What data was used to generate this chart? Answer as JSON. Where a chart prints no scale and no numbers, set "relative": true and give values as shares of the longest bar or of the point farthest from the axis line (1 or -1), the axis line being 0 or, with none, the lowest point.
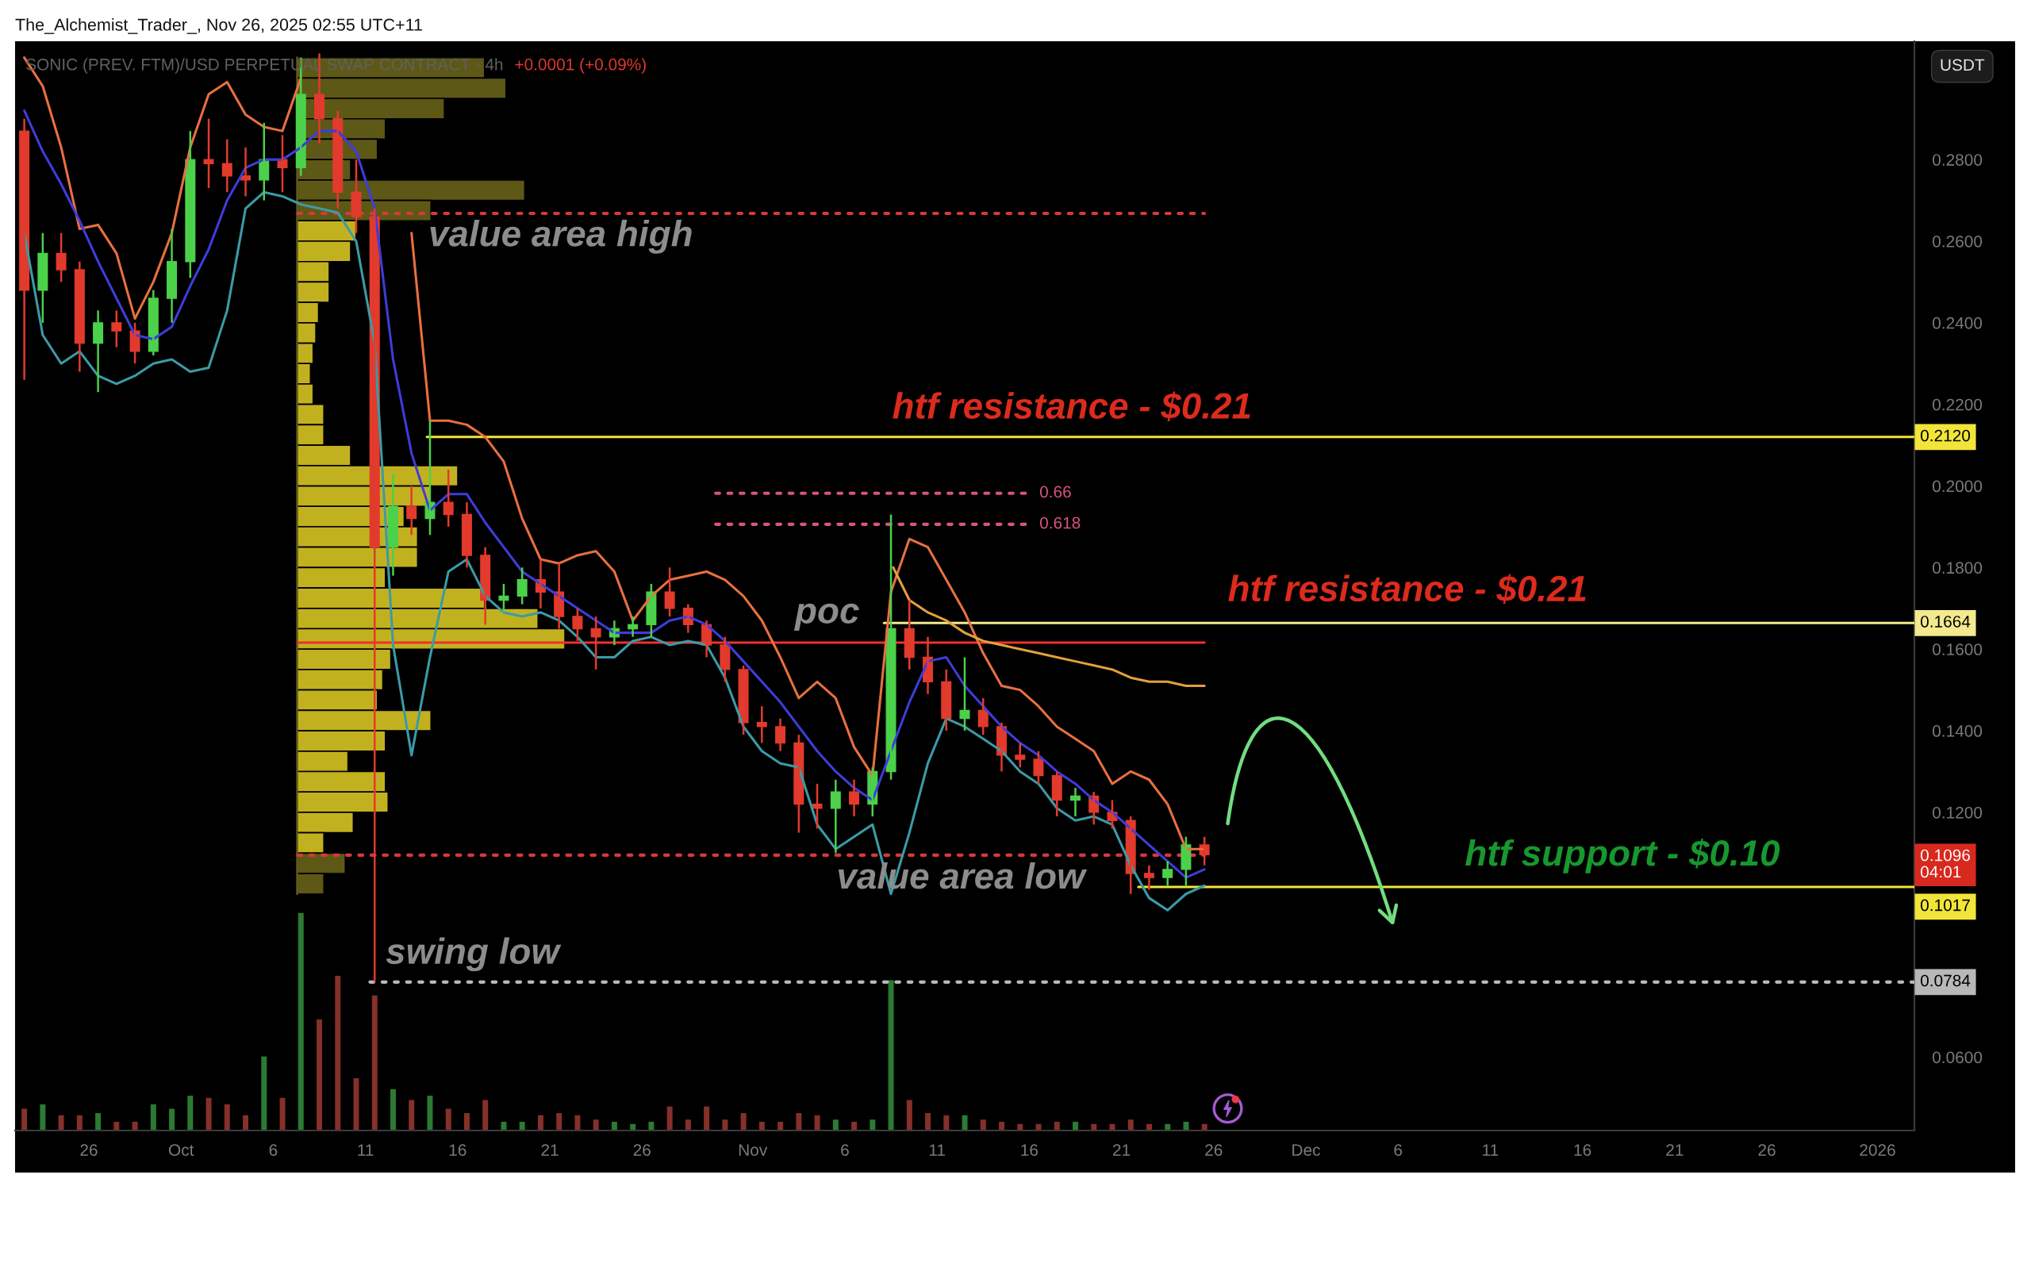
{
  "chart_data": [
    {
      "type": "candlestick",
      "title": "SONIC (PREV. FTM)/USD PERPETUAL SWAP CONTRACT · 4h",
      "subtitle": "+0.0001 (+0.09%)",
      "ylabel": "USDT",
      "x": [
        "2025-09-22T12:00",
        "2025-09-23T12:00",
        "2025-09-24T12:00",
        "2025-09-25T12:00",
        "2025-09-26T12:00",
        "2025-09-27T12:00",
        "2025-09-28T12:00",
        "2025-09-29T12:00",
        "2025-09-30T12:00",
        "2025-10-01T12:00",
        "2025-10-02T12:00",
        "2025-10-03T12:00",
        "2025-10-04T12:00",
        "2025-10-05T12:00",
        "2025-10-06T12:00",
        "2025-10-07T12:00",
        "2025-10-08T12:00",
        "2025-10-09T12:00",
        "2025-10-10T12:00",
        "2025-10-11T12:00",
        "2025-10-12T12:00",
        "2025-10-13T12:00",
        "2025-10-14T12:00",
        "2025-10-15T12:00",
        "2025-10-16T12:00",
        "2025-10-17T12:00",
        "2025-10-18T12:00",
        "2025-10-19T12:00",
        "2025-10-20T12:00",
        "2025-10-21T12:00",
        "2025-10-22T12:00",
        "2025-10-23T12:00",
        "2025-10-24T12:00",
        "2025-10-25T12:00",
        "2025-10-26T12:00",
        "2025-10-27T12:00",
        "2025-10-28T12:00",
        "2025-10-29T12:00",
        "2025-10-30T12:00",
        "2025-10-31T12:00",
        "2025-11-01T12:00",
        "2025-11-02T12:00",
        "2025-11-03T12:00",
        "2025-11-04T12:00",
        "2025-11-05T12:00",
        "2025-11-06T12:00",
        "2025-11-07T12:00",
        "2025-11-08T12:00",
        "2025-11-09T12:00",
        "2025-11-10T12:00",
        "2025-11-11T12:00",
        "2025-11-12T12:00",
        "2025-11-13T12:00",
        "2025-11-14T12:00",
        "2025-11-15T12:00",
        "2025-11-16T12:00",
        "2025-11-17T12:00",
        "2025-11-18T12:00",
        "2025-11-19T12:00",
        "2025-11-20T12:00",
        "2025-11-21T12:00",
        "2025-11-22T12:00",
        "2025-11-23T12:00",
        "2025-11-24T12:00",
        "2025-11-25T12:00"
      ],
      "ohlc": [
        [
          0.287,
          0.29,
          0.226,
          0.248
        ],
        [
          0.248,
          0.262,
          0.24,
          0.257
        ],
        [
          0.257,
          0.262,
          0.25,
          0.253
        ],
        [
          0.253,
          0.255,
          0.228,
          0.235
        ],
        [
          0.235,
          0.243,
          0.223,
          0.24
        ],
        [
          0.24,
          0.243,
          0.234,
          0.238
        ],
        [
          0.238,
          0.24,
          0.23,
          0.233
        ],
        [
          0.233,
          0.248,
          0.232,
          0.246
        ],
        [
          0.246,
          0.263,
          0.24,
          0.255
        ],
        [
          0.255,
          0.287,
          0.251,
          0.28
        ],
        [
          0.28,
          0.29,
          0.273,
          0.279
        ],
        [
          0.279,
          0.285,
          0.272,
          0.276
        ],
        [
          0.276,
          0.283,
          0.271,
          0.275
        ],
        [
          0.275,
          0.289,
          0.27,
          0.28
        ],
        [
          0.28,
          0.286,
          0.272,
          0.278
        ],
        [
          0.278,
          0.305,
          0.276,
          0.296
        ],
        [
          0.296,
          0.306,
          0.284,
          0.29
        ],
        [
          0.29,
          0.292,
          0.268,
          0.272
        ],
        [
          0.272,
          0.28,
          0.262,
          0.266
        ],
        [
          0.266,
          0.268,
          0.0784,
          0.185
        ],
        [
          0.185,
          0.203,
          0.178,
          0.195
        ],
        [
          0.195,
          0.2,
          0.188,
          0.192
        ],
        [
          0.192,
          0.216,
          0.188,
          0.196
        ],
        [
          0.196,
          0.204,
          0.19,
          0.193
        ],
        [
          0.193,
          0.196,
          0.18,
          0.183
        ],
        [
          0.183,
          0.185,
          0.166,
          0.172
        ],
        [
          0.172,
          0.176,
          0.169,
          0.173
        ],
        [
          0.173,
          0.18,
          0.171,
          0.177
        ],
        [
          0.177,
          0.182,
          0.17,
          0.174
        ],
        [
          0.174,
          0.181,
          0.165,
          0.168
        ],
        [
          0.168,
          0.17,
          0.162,
          0.165
        ],
        [
          0.165,
          0.168,
          0.155,
          0.163
        ],
        [
          0.163,
          0.167,
          0.161,
          0.165
        ],
        [
          0.165,
          0.168,
          0.163,
          0.166
        ],
        [
          0.166,
          0.176,
          0.163,
          0.174
        ],
        [
          0.174,
          0.18,
          0.168,
          0.17
        ],
        [
          0.17,
          0.171,
          0.164,
          0.166
        ],
        [
          0.166,
          0.167,
          0.158,
          0.161
        ],
        [
          0.161,
          0.163,
          0.152,
          0.155
        ],
        [
          0.155,
          0.156,
          0.139,
          0.142
        ],
        [
          0.142,
          0.146,
          0.137,
          0.141
        ],
        [
          0.141,
          0.143,
          0.135,
          0.137
        ],
        [
          0.137,
          0.139,
          0.115,
          0.122
        ],
        [
          0.122,
          0.127,
          0.116,
          0.121
        ],
        [
          0.121,
          0.128,
          0.11,
          0.125
        ],
        [
          0.125,
          0.128,
          0.119,
          0.122
        ],
        [
          0.122,
          0.131,
          0.119,
          0.13
        ],
        [
          0.13,
          0.193,
          0.128,
          0.165
        ],
        [
          0.165,
          0.172,
          0.155,
          0.158
        ],
        [
          0.158,
          0.163,
          0.149,
          0.152
        ],
        [
          0.152,
          0.155,
          0.14,
          0.143
        ],
        [
          0.143,
          0.158,
          0.14,
          0.145
        ],
        [
          0.145,
          0.148,
          0.139,
          0.141
        ],
        [
          0.141,
          0.142,
          0.13,
          0.134
        ],
        [
          0.134,
          0.137,
          0.131,
          0.133
        ],
        [
          0.133,
          0.135,
          0.127,
          0.129
        ],
        [
          0.129,
          0.13,
          0.119,
          0.123
        ],
        [
          0.123,
          0.126,
          0.119,
          0.124
        ],
        [
          0.124,
          0.125,
          0.117,
          0.12
        ],
        [
          0.12,
          0.123,
          0.116,
          0.118
        ],
        [
          0.118,
          0.119,
          0.1,
          0.105
        ],
        [
          0.105,
          0.107,
          0.101,
          0.104
        ],
        [
          0.104,
          0.108,
          0.102,
          0.106
        ],
        [
          0.106,
          0.114,
          0.102,
          0.112
        ],
        [
          0.112,
          0.114,
          0.107,
          0.1096
        ]
      ],
      "colors": [
        "#e23a2c",
        "#4bd14a",
        "#e23a2c",
        "#e23a2c",
        "#4bd14a",
        "#e23a2c",
        "#e23a2c",
        "#4bd14a",
        "#4bd14a",
        "#4bd14a",
        "#e23a2c",
        "#e23a2c",
        "#e23a2c",
        "#4bd14a",
        "#e23a2c",
        "#4bd14a",
        "#e23a2c",
        "#e23a2c",
        "#e23a2c",
        "#e23a2c",
        "#4bd14a",
        "#e23a2c",
        "#4bd14a",
        "#e23a2c",
        "#e23a2c",
        "#e23a2c",
        "#4bd14a",
        "#4bd14a",
        "#e23a2c",
        "#e23a2c",
        "#e23a2c",
        "#e23a2c",
        "#4bd14a",
        "#4bd14a",
        "#4bd14a",
        "#e23a2c",
        "#e23a2c",
        "#e23a2c",
        "#e23a2c",
        "#e23a2c",
        "#e23a2c",
        "#e23a2c",
        "#e23a2c",
        "#e23a2c",
        "#4bd14a",
        "#e23a2c",
        "#4bd14a",
        "#4bd14a",
        "#e23a2c",
        "#e23a2c",
        "#e23a2c",
        "#4bd14a",
        "#e23a2c",
        "#e23a2c",
        "#e23a2c",
        "#e23a2c",
        "#e23a2c",
        "#4bd14a",
        "#e23a2c",
        "#e23a2c",
        "#e23a2c",
        "#e23a2c",
        "#4bd14a",
        "#4bd14a",
        "#e23a2c"
      ],
      "series": [
        {
          "type": "line",
          "color": "#e8703f",
          "values": [
            0.305,
            0.298,
            0.283,
            0.263,
            0.264,
            0.257,
            0.241,
            0.25,
            0.262,
            0.283,
            0.296,
            0.299,
            0.291,
            0.288,
            0.287,
            0.3,
            null,
            null,
            null,
            null,
            null,
            0.262,
            0.216,
            0.216,
            0.215,
            0.212,
            0.206,
            0.192,
            0.182,
            0.181,
            0.183,
            0.184,
            0.179,
            0.167,
            0.173,
            0.177,
            0.178,
            0.179,
            0.177,
            0.173,
            0.167,
            0.158,
            0.148,
            0.152,
            0.148,
            0.136,
            0.129,
            0.174,
            0.187,
            0.185,
            0.177,
            0.169,
            0.159,
            0.151,
            0.15,
            0.146,
            0.141,
            0.138,
            0.135,
            0.127,
            0.13,
            0.128,
            0.122,
            0.111,
            0.111
          ]
        },
        {
          "type": "line",
          "color": "#3d3ddb",
          "values": [
            0.292,
            0.282,
            0.274,
            0.265,
            0.255,
            0.246,
            0.237,
            0.236,
            0.239,
            0.249,
            0.258,
            0.27,
            0.278,
            0.28,
            0.28,
            0.283,
            0.287,
            0.287,
            0.282,
            0.268,
            0.231,
            0.208,
            0.194,
            0.198,
            0.198,
            0.191,
            0.185,
            0.179,
            0.176,
            0.173,
            0.17,
            0.167,
            0.164,
            0.164,
            0.164,
            0.167,
            0.168,
            0.166,
            0.162,
            0.157,
            0.152,
            0.147,
            0.141,
            0.135,
            0.13,
            0.126,
            0.123,
            0.135,
            0.147,
            0.157,
            0.158,
            0.151,
            0.146,
            0.141,
            0.137,
            0.134,
            0.13,
            0.127,
            0.123,
            0.12,
            0.116,
            0.112,
            0.108,
            0.104,
            0.106
          ]
        },
        {
          "type": "line",
          "color": "#3b9ba8",
          "values": [
            0.262,
            0.237,
            0.23,
            0.233,
            0.227,
            0.225,
            0.227,
            0.23,
            0.231,
            0.228,
            0.229,
            0.243,
            0.268,
            0.272,
            0.271,
            0.269,
            0.268,
            0.267,
            0.26,
            0.235,
            0.161,
            0.134,
            0.158,
            0.179,
            0.182,
            0.173,
            0.169,
            0.168,
            0.169,
            0.167,
            0.163,
            0.158,
            0.158,
            0.162,
            0.163,
            0.161,
            0.162,
            0.161,
            0.153,
            0.141,
            0.135,
            0.132,
            0.131,
            0.117,
            0.111,
            0.114,
            0.117,
            0.1,
            0.115,
            0.132,
            0.143,
            0.141,
            0.138,
            0.135,
            0.13,
            0.127,
            0.121,
            0.118,
            0.119,
            0.117,
            0.107,
            0.099,
            0.096,
            0.1,
            0.102
          ]
        },
        {
          "type": "line",
          "color": "#e3a03c",
          "x": [
            "2025-11-08T15:00",
            "2025-11-09T12:00",
            "2025-11-10T12:00",
            "2025-11-11T12:00",
            "2025-11-12T12:00",
            "2025-11-13T12:00",
            "2025-11-14T12:00",
            "2025-11-15T12:00",
            "2025-11-16T12:00",
            "2025-11-17T12:00",
            "2025-11-18T12:00",
            "2025-11-19T12:00",
            "2025-11-20T12:00",
            "2025-11-21T12:00",
            "2025-11-22T12:00",
            "2025-11-23T12:00",
            "2025-11-24T12:00",
            "2025-11-25T12:00"
          ],
          "values": [
            0.18,
            0.172,
            0.169,
            0.167,
            0.164,
            0.162,
            0.161,
            0.16,
            0.159,
            0.158,
            0.157,
            0.156,
            0.155,
            0.153,
            0.152,
            0.152,
            0.151,
            0.151
          ]
        },
        {
          "type": "line",
          "color": "#d9383a",
          "line_style": "dotted",
          "x": [
            "2025-10-07T08:00",
            "2025-11-25T12:00"
          ],
          "values": [
            0.2668,
            0.2668
          ]
        },
        {
          "type": "line",
          "color": "#f0302a",
          "x": [
            "2025-10-07T08:00",
            "2025-11-25T12:00"
          ],
          "values": [
            0.1616,
            0.1616
          ]
        },
        {
          "type": "line",
          "color": "#d9383a",
          "line_style": "dotted",
          "x": [
            "2025-10-07T08:00",
            "2025-11-25T12:00"
          ],
          "values": [
            0.1095,
            0.1095
          ]
        },
        {
          "type": "line",
          "name": "0.2120",
          "color": "#f2e53a",
          "x": [
            "2025-10-14T08:00",
            "2026-01-03"
          ],
          "values": [
            0.212,
            0.212
          ]
        },
        {
          "type": "line",
          "name": "0.1664",
          "color": "#f3e98e",
          "x": [
            "2025-11-08T03:00",
            "2026-01-03"
          ],
          "values": [
            0.1664,
            0.1664
          ]
        },
        {
          "type": "line",
          "name": "0.1017",
          "color": "#f2e53a",
          "x": [
            "2025-11-21T22:00",
            "2026-01-03"
          ],
          "values": [
            0.1017,
            0.1017
          ]
        },
        {
          "type": "line",
          "name": "0.0784",
          "color": "#b8b8b8",
          "line_style": "dotted",
          "x": [
            "2025-10-11T06:00",
            "2026-01-03"
          ],
          "values": [
            0.0784,
            0.0784
          ]
        },
        {
          "type": "line",
          "name": "0.66",
          "color": "#d9547f",
          "line_style": "dotted",
          "x": [
            "2025-10-30T00:00",
            "2025-11-15T20:00"
          ],
          "values": [
            0.1982,
            0.1982
          ]
        },
        {
          "type": "line",
          "name": "0.618",
          "color": "#d9547f",
          "line_style": "dotted",
          "x": [
            "2025-10-30T00:00",
            "2025-11-15T20:00"
          ],
          "values": [
            0.1906,
            0.1906
          ]
        }
      ],
      "annotations": [
        "The_Alchemist_Trader_, Nov 26, 2025 02:55 UTC+11",
        "value area high",
        "htf resistance - $0.21",
        "poc",
        "htf resistance - $0.21",
        "htf support - $0.10",
        "value area low",
        "swing low",
        "0.1096\n04:01"
      ],
      "xlim": [
        "2025-09-22",
        "2026-01-03"
      ],
      "ylim": [
        0.042,
        0.309
      ],
      "xticks": [
        {
          "value": "2025-09-26",
          "label": "26"
        },
        {
          "value": "2025-10-01",
          "label": "Oct"
        },
        {
          "value": "2025-10-06",
          "label": "6"
        },
        {
          "value": "2025-10-11",
          "label": "11"
        },
        {
          "value": "2025-10-16",
          "label": "16"
        },
        {
          "value": "2025-10-21",
          "label": "21"
        },
        {
          "value": "2025-10-26",
          "label": "26"
        },
        {
          "value": "2025-11-01",
          "label": "Nov"
        },
        {
          "value": "2025-11-06",
          "label": "6"
        },
        {
          "value": "2025-11-11",
          "label": "11"
        },
        {
          "value": "2025-11-16",
          "label": "16"
        },
        {
          "value": "2025-11-21",
          "label": "21"
        },
        {
          "value": "2025-11-26",
          "label": "26"
        },
        {
          "value": "2025-12-01",
          "label": "Dec"
        },
        {
          "value": "2025-12-06",
          "label": "6"
        },
        {
          "value": "2025-12-11",
          "label": "11"
        },
        {
          "value": "2025-12-16",
          "label": "16"
        },
        {
          "value": "2025-12-21",
          "label": "21"
        },
        {
          "value": "2025-12-26",
          "label": "26"
        },
        {
          "value": "2026-01-01",
          "label": "2026"
        }
      ],
      "yticks": [
        {
          "value": 0.06,
          "label": "0.0600"
        },
        {
          "value": 0.12,
          "label": "0.1200"
        },
        {
          "value": 0.14,
          "label": "0.1400"
        },
        {
          "value": 0.16,
          "label": "0.1600"
        },
        {
          "value": 0.18,
          "label": "0.1800"
        },
        {
          "value": 0.2,
          "label": "0.2000"
        },
        {
          "value": 0.22,
          "label": "0.2200"
        },
        {
          "value": 0.24,
          "label": "0.2400"
        },
        {
          "value": 0.26,
          "label": "0.2600"
        },
        {
          "value": 0.28,
          "label": "0.2800"
        }
      ]
    },
    {
      "type": "bar",
      "orientation": "horizontal",
      "relative": true,
      "categories": [
        null,
        null,
        null,
        null,
        null,
        null,
        null,
        null,
        null,
        null,
        null,
        null,
        null,
        null,
        null,
        null,
        null,
        null,
        null,
        null,
        null,
        null,
        null,
        null,
        null,
        null,
        null,
        null,
        null,
        null,
        null,
        null,
        null,
        null,
        null,
        null,
        null,
        null,
        null,
        null,
        null
      ],
      "values": [
        0.7,
        0.78,
        0.55,
        0.33,
        0.3,
        0.2,
        0.85,
        0.5,
        0.22,
        0.2,
        0.12,
        0.12,
        0.08,
        0.07,
        0.06,
        0.05,
        0.06,
        0.1,
        0.1,
        0.2,
        0.6,
        0.5,
        0.4,
        0.45,
        0.45,
        0.33,
        0.7,
        0.9,
        1.0,
        0.35,
        0.32,
        0.3,
        0.5,
        0.33,
        0.19,
        0.33,
        0.34,
        0.21,
        0.1,
        0.18,
        0.1
      ],
      "colors": [
        "#5e5816",
        "#5e5816",
        "#5e5816",
        "#5e5816",
        "#5e5816",
        "#5e5816",
        "#5e5816",
        "#5e5816",
        "#c2b11f",
        "#c2b11f",
        "#c2b11f",
        "#c2b11f",
        "#c2b11f",
        "#c2b11f",
        "#c2b11f",
        "#c2b11f",
        "#c2b11f",
        "#c2b11f",
        "#c2b11f",
        "#c2b11f",
        "#c2b11f",
        "#c2b11f",
        "#c2b11f",
        "#c2b11f",
        "#c2b11f",
        "#c2b11f",
        "#c2b11f",
        "#c2b11f",
        "#c2b11f",
        "#c2b11f",
        "#c2b11f",
        "#c2b11f",
        "#c2b11f",
        "#c2b11f",
        "#c2b11f",
        "#c2b11f",
        "#c2b11f",
        "#c2b11f",
        "#c2b11f",
        "#5e5816",
        "#5e5816"
      ]
    },
    {
      "type": "bar",
      "relative": true,
      "categories": [
        null,
        null,
        null,
        null,
        null,
        null,
        null,
        null,
        null,
        null,
        null,
        null,
        null,
        null,
        null,
        null,
        null,
        null,
        null,
        null,
        null,
        null,
        null,
        null,
        null,
        null,
        null,
        null,
        null,
        null,
        null,
        null,
        null,
        null,
        null,
        null,
        null,
        null,
        null,
        null,
        null,
        null,
        null,
        null,
        null,
        null,
        null,
        null,
        null,
        null,
        null,
        null,
        null,
        null,
        null,
        null,
        null,
        null,
        null,
        null,
        null,
        null,
        null,
        null,
        null
      ],
      "values": [
        0.1,
        0.12,
        0.07,
        0.07,
        0.08,
        0.04,
        0.04,
        0.12,
        0.1,
        0.16,
        0.15,
        0.12,
        0.07,
        0.34,
        0.15,
        1.0,
        0.51,
        0.71,
        0.24,
        0.62,
        0.19,
        0.14,
        0.16,
        0.1,
        0.08,
        0.14,
        0.04,
        0.04,
        0.07,
        0.08,
        0.07,
        0.05,
        0.04,
        0.03,
        0.04,
        0.11,
        0.05,
        0.11,
        0.05,
        0.08,
        0.04,
        0.04,
        0.08,
        0.07,
        0.05,
        0.04,
        0.05,
        0.69,
        0.14,
        0.08,
        0.07,
        0.07,
        0.05,
        0.04,
        0.03,
        0.03,
        0.04,
        0.04,
        0.03,
        0.03,
        0.05,
        0.03,
        0.03,
        0.04,
        0.03
      ],
      "colors": [
        "#85302a",
        "#2c7a33",
        "#85302a",
        "#85302a",
        "#2c7a33",
        "#85302a",
        "#85302a",
        "#2c7a33",
        "#2c7a33",
        "#2c7a33",
        "#85302a",
        "#85302a",
        "#85302a",
        "#2c7a33",
        "#85302a",
        "#2c7a33",
        "#85302a",
        "#85302a",
        "#85302a",
        "#85302a",
        "#2c7a33",
        "#85302a",
        "#2c7a33",
        "#85302a",
        "#85302a",
        "#85302a",
        "#2c7a33",
        "#2c7a33",
        "#85302a",
        "#85302a",
        "#85302a",
        "#85302a",
        "#2c7a33",
        "#2c7a33",
        "#2c7a33",
        "#85302a",
        "#85302a",
        "#85302a",
        "#85302a",
        "#85302a",
        "#85302a",
        "#85302a",
        "#85302a",
        "#85302a",
        "#2c7a33",
        "#85302a",
        "#2c7a33",
        "#2c7a33",
        "#85302a",
        "#85302a",
        "#85302a",
        "#2c7a33",
        "#85302a",
        "#85302a",
        "#85302a",
        "#85302a",
        "#85302a",
        "#2c7a33",
        "#85302a",
        "#85302a",
        "#85302a",
        "#85302a",
        "#2c7a33",
        "#2c7a33",
        "#85302a"
      ]
    }
  ]
}
